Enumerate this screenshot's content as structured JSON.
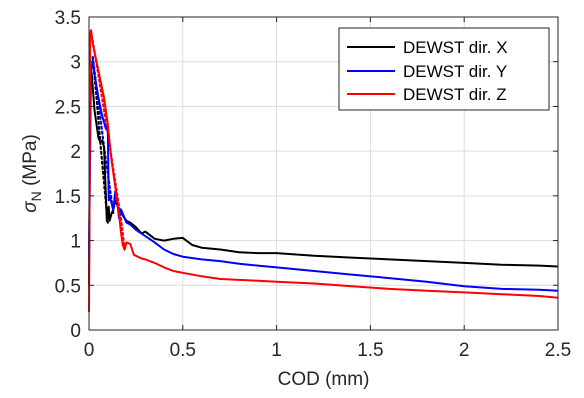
{
  "chart_data": {
    "type": "line",
    "title": "",
    "xlabel": "COD (mm)",
    "ylabel": {
      "symbol": "σ",
      "subscript": "N",
      "unit": " (MPa)"
    },
    "xlim": [
      0,
      2.5
    ],
    "ylim": [
      0,
      3.5
    ],
    "xticks": [
      0,
      0.5,
      1,
      1.5,
      2,
      2.5
    ],
    "xtick_labels": [
      "0",
      "0.5",
      "1",
      "1.5",
      "2",
      "2.5"
    ],
    "yticks": [
      0,
      0.5,
      1,
      1.5,
      2,
      2.5,
      3,
      3.5
    ],
    "ytick_labels": [
      "0",
      "0.5",
      "1",
      "1.5",
      "2",
      "2.5",
      "3",
      "3.5"
    ],
    "grid": true,
    "legend_position": "top-right",
    "series": [
      {
        "name": "DEWST dir. X",
        "color": "#000000",
        "style": "solid",
        "x": [
          0,
          0.005,
          0.01,
          0.015,
          0.02,
          0.03,
          0.04,
          0.05,
          0.06,
          0.07,
          0.08,
          0.09,
          0.095,
          0.1,
          0.105,
          0.11,
          0.12,
          0.13,
          0.14,
          0.15,
          0.16,
          0.17,
          0.18,
          0.2,
          0.22,
          0.25,
          0.28,
          0.3,
          0.35,
          0.4,
          0.45,
          0.5,
          0.55,
          0.6,
          0.7,
          0.8,
          0.9,
          1.0,
          1.2,
          1.4,
          1.6,
          1.8,
          2.0,
          2.2,
          2.4,
          2.5
        ],
        "y": [
          0.5,
          2.3,
          2.95,
          2.85,
          2.7,
          2.45,
          2.3,
          2.15,
          2.1,
          2.12,
          2.05,
          1.5,
          1.22,
          1.25,
          1.38,
          1.22,
          1.3,
          1.35,
          1.45,
          1.4,
          1.35,
          1.33,
          1.28,
          1.22,
          1.2,
          1.15,
          1.08,
          1.1,
          1.02,
          1.0,
          1.02,
          1.03,
          0.95,
          0.92,
          0.9,
          0.87,
          0.86,
          0.86,
          0.83,
          0.81,
          0.79,
          0.77,
          0.75,
          0.73,
          0.72,
          0.71
        ]
      },
      {
        "name": "DEWST dir. Y",
        "color": "#0000ff",
        "style": "solid",
        "x": [
          0,
          0.01,
          0.02,
          0.03,
          0.05,
          0.07,
          0.09,
          0.1,
          0.105,
          0.11,
          0.12,
          0.13,
          0.14,
          0.15,
          0.16,
          0.17,
          0.18,
          0.2,
          0.22,
          0.25,
          0.3,
          0.35,
          0.4,
          0.45,
          0.5,
          0.6,
          0.7,
          0.8,
          0.9,
          1.0,
          1.2,
          1.4,
          1.6,
          1.8,
          2.0,
          2.2,
          2.4,
          2.5
        ],
        "y": [
          0.8,
          2.9,
          3.02,
          2.85,
          2.6,
          2.4,
          2.25,
          2.28,
          1.45,
          1.5,
          1.42,
          1.35,
          1.55,
          1.45,
          1.25,
          1.35,
          1.3,
          1.2,
          1.18,
          1.12,
          1.05,
          0.98,
          0.9,
          0.85,
          0.82,
          0.79,
          0.77,
          0.74,
          0.72,
          0.7,
          0.66,
          0.62,
          0.58,
          0.54,
          0.49,
          0.46,
          0.45,
          0.44
        ]
      },
      {
        "name": "DEWST dir. Z",
        "color": "#ff0000",
        "style": "solid",
        "x": [
          0,
          0.003,
          0.006,
          0.01,
          0.015,
          0.02,
          0.05,
          0.08,
          0.1,
          0.12,
          0.14,
          0.16,
          0.17,
          0.18,
          0.19,
          0.2,
          0.22,
          0.24,
          0.26,
          0.28,
          0.3,
          0.35,
          0.4,
          0.45,
          0.5,
          0.6,
          0.7,
          0.8,
          0.9,
          1.0,
          1.2,
          1.4,
          1.6,
          1.8,
          2.0,
          2.2,
          2.4,
          2.5
        ],
        "y": [
          0.2,
          1.6,
          3.3,
          3.35,
          3.28,
          3.2,
          2.9,
          2.6,
          2.3,
          1.9,
          1.6,
          1.3,
          1.1,
          0.95,
          0.9,
          0.98,
          0.96,
          0.84,
          0.82,
          0.8,
          0.79,
          0.75,
          0.7,
          0.66,
          0.64,
          0.6,
          0.57,
          0.56,
          0.55,
          0.54,
          0.52,
          0.49,
          0.46,
          0.44,
          0.42,
          0.4,
          0.38,
          0.36
        ]
      },
      {
        "color": "#000000",
        "style": "dotted",
        "x": [
          0.02,
          0.04,
          0.06,
          0.08,
          0.1
        ],
        "y": [
          3.05,
          2.6,
          2.1,
          1.65,
          1.2
        ]
      },
      {
        "color": "#0000ff",
        "style": "dotted",
        "x": [
          0.02,
          0.05,
          0.08,
          0.1,
          0.13
        ],
        "y": [
          3.05,
          2.55,
          2.05,
          1.75,
          1.3
        ]
      },
      {
        "color": "#ff0000",
        "style": "dotted",
        "x": [
          0.01,
          0.05,
          0.1,
          0.14,
          0.17,
          0.19
        ],
        "y": [
          3.35,
          2.85,
          2.2,
          1.65,
          1.25,
          0.9
        ]
      }
    ]
  }
}
